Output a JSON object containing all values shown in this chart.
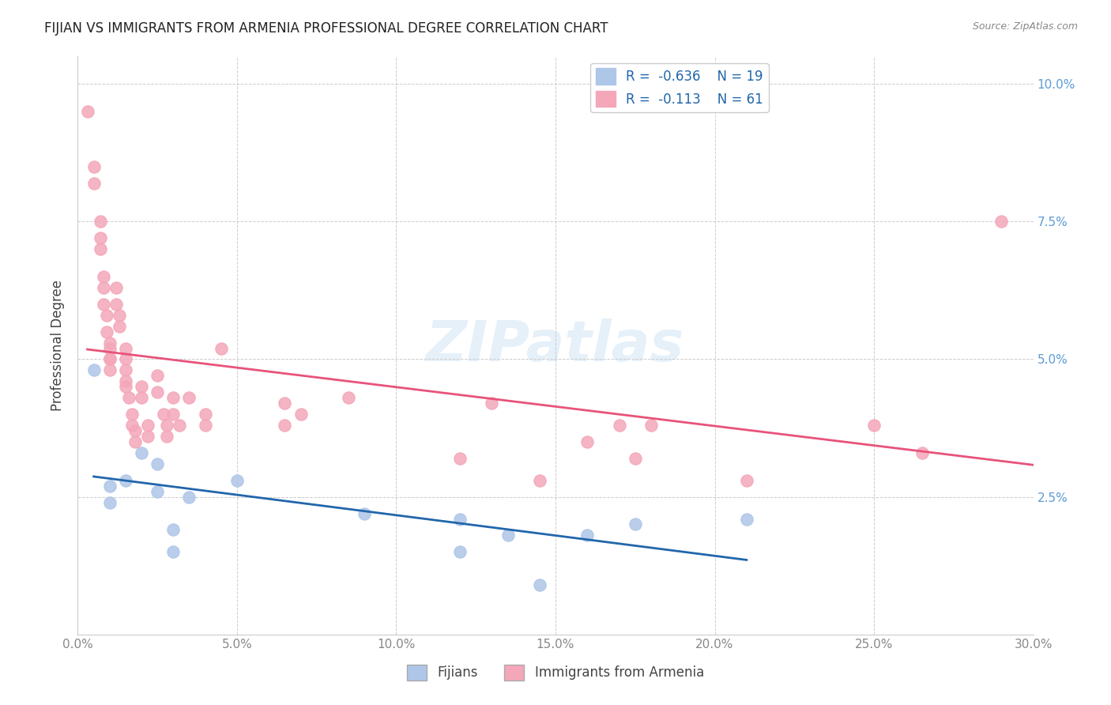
{
  "title": "FIJIAN VS IMMIGRANTS FROM ARMENIA PROFESSIONAL DEGREE CORRELATION CHART",
  "source": "Source: ZipAtlas.com",
  "xlabel_bottom": "",
  "ylabel": "Professional Degree",
  "xlim": [
    0.0,
    0.3
  ],
  "ylim": [
    0.0,
    0.105
  ],
  "xticks": [
    0.0,
    0.05,
    0.1,
    0.15,
    0.2,
    0.25,
    0.3
  ],
  "yticks_left": [
    0.025,
    0.05,
    0.075,
    0.1
  ],
  "yticks_right": [
    0.025,
    0.05,
    0.075,
    0.1
  ],
  "ytick_labels_right": [
    "2.5%",
    "5.0%",
    "7.5%",
    "10.0%"
  ],
  "ytick_labels_left": [
    "",
    "",
    "",
    ""
  ],
  "xtick_labels": [
    "0.0%",
    "5.0%",
    "10.0%",
    "15.0%",
    "20.0%",
    "25.0%",
    "30.0%"
  ],
  "fijian_color": "#aec6e8",
  "armenia_color": "#f4a7b9",
  "fijian_line_color": "#2166ac",
  "armenia_line_color": "#e8537a",
  "legend_R_fijian": "-0.636",
  "legend_N_fijian": "19",
  "legend_R_armenia": "-0.113",
  "legend_N_armenia": "61",
  "watermark": "ZIPatlas",
  "fijian_x": [
    0.005,
    0.01,
    0.01,
    0.015,
    0.02,
    0.025,
    0.025,
    0.03,
    0.03,
    0.035,
    0.05,
    0.09,
    0.12,
    0.12,
    0.135,
    0.145,
    0.16,
    0.175,
    0.21
  ],
  "fijian_y": [
    0.048,
    0.027,
    0.024,
    0.028,
    0.033,
    0.026,
    0.031,
    0.015,
    0.019,
    0.025,
    0.028,
    0.022,
    0.021,
    0.015,
    0.018,
    0.009,
    0.018,
    0.02,
    0.021
  ],
  "armenia_x": [
    0.003,
    0.005,
    0.005,
    0.007,
    0.007,
    0.007,
    0.008,
    0.008,
    0.008,
    0.009,
    0.009,
    0.01,
    0.01,
    0.01,
    0.01,
    0.01,
    0.012,
    0.012,
    0.013,
    0.013,
    0.015,
    0.015,
    0.015,
    0.015,
    0.015,
    0.016,
    0.017,
    0.017,
    0.018,
    0.018,
    0.02,
    0.02,
    0.022,
    0.022,
    0.025,
    0.025,
    0.027,
    0.028,
    0.028,
    0.03,
    0.03,
    0.032,
    0.035,
    0.04,
    0.04,
    0.045,
    0.065,
    0.065,
    0.07,
    0.085,
    0.12,
    0.13,
    0.145,
    0.16,
    0.17,
    0.175,
    0.18,
    0.21,
    0.25,
    0.265,
    0.29
  ],
  "armenia_y": [
    0.095,
    0.085,
    0.082,
    0.075,
    0.072,
    0.07,
    0.065,
    0.063,
    0.06,
    0.058,
    0.055,
    0.053,
    0.052,
    0.05,
    0.05,
    0.048,
    0.063,
    0.06,
    0.058,
    0.056,
    0.052,
    0.05,
    0.048,
    0.046,
    0.045,
    0.043,
    0.04,
    0.038,
    0.037,
    0.035,
    0.045,
    0.043,
    0.038,
    0.036,
    0.047,
    0.044,
    0.04,
    0.038,
    0.036,
    0.043,
    0.04,
    0.038,
    0.043,
    0.04,
    0.038,
    0.052,
    0.042,
    0.038,
    0.04,
    0.043,
    0.032,
    0.042,
    0.028,
    0.035,
    0.038,
    0.032,
    0.038,
    0.028,
    0.038,
    0.033,
    0.075
  ]
}
